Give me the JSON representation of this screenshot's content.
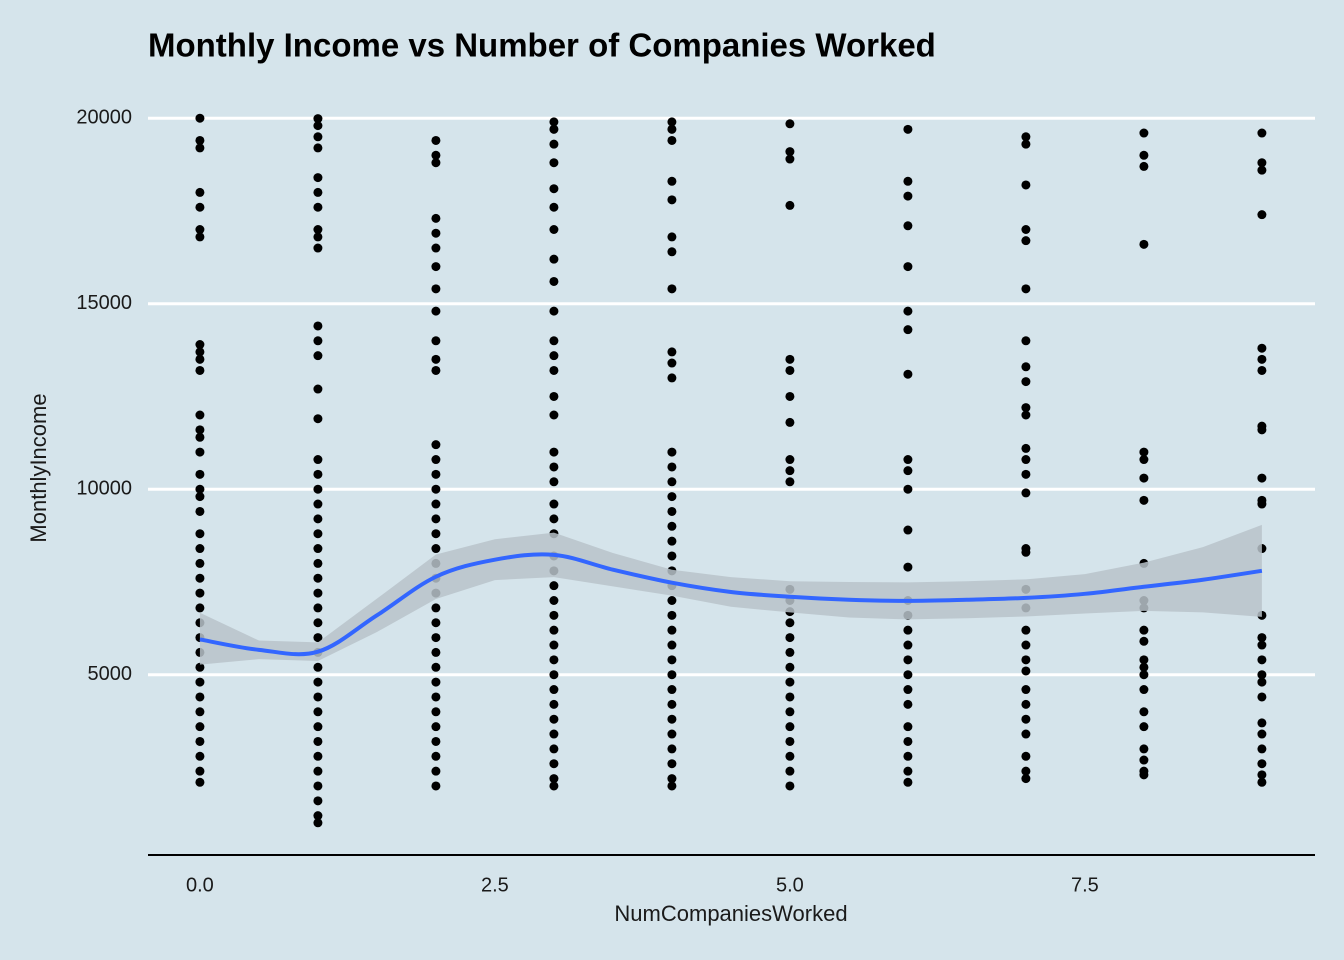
{
  "chart_data": {
    "type": "scatter",
    "title": "Monthly Income vs Number of Companies Worked",
    "x_label": "NumCompaniesWorked",
    "y_label": "MonthlyIncome",
    "xlim": [
      -0.44,
      9.45
    ],
    "ylim": [
      59,
      20949
    ],
    "xticks": [
      {
        "value": 0,
        "label": "0.0"
      },
      2.5,
      {
        "value": 5,
        "label": "5.0"
      },
      7.5
    ],
    "yticks": [
      5000,
      10000,
      15000,
      20000
    ],
    "grid": true,
    "point_color": "#000000",
    "groups": [
      {
        "x": 0,
        "values": [
          20000,
          19400,
          19200,
          18000,
          17600,
          17000,
          16800,
          13900,
          13700,
          13500,
          13200,
          12000,
          11600,
          11400,
          11000,
          10400,
          10000,
          9800,
          9400,
          8800,
          8400,
          8000,
          7600,
          7200,
          6800,
          6400,
          6000,
          5600,
          5200,
          4800,
          4400,
          4000,
          3600,
          3200,
          2800,
          2400,
          2100
        ]
      },
      {
        "x": 1,
        "values": [
          19990,
          19800,
          19500,
          19200,
          18400,
          18000,
          17600,
          17000,
          16800,
          16500,
          14400,
          14000,
          13600,
          12700,
          11900,
          10800,
          10400,
          10000,
          9600,
          9200,
          8800,
          8400,
          8000,
          7600,
          7200,
          6800,
          6400,
          6000,
          5600,
          5200,
          4800,
          4400,
          4000,
          3600,
          3200,
          2800,
          2400,
          2000,
          1600,
          1200,
          1009
        ]
      },
      {
        "x": 2,
        "values": [
          19400,
          19000,
          18800,
          17300,
          16900,
          16500,
          16000,
          15400,
          14800,
          14000,
          13500,
          13200,
          11200,
          10800,
          10400,
          10000,
          9600,
          9200,
          8800,
          8400,
          8000,
          7600,
          7200,
          6800,
          6400,
          6000,
          5600,
          5200,
          4800,
          4400,
          4000,
          3600,
          3200,
          2800,
          2400,
          2000
        ]
      },
      {
        "x": 3,
        "values": [
          19900,
          19700,
          19300,
          18800,
          18100,
          17600,
          17000,
          16200,
          15600,
          14800,
          14000,
          13600,
          13200,
          12500,
          12000,
          11000,
          10600,
          10200,
          9600,
          9200,
          8800,
          8200,
          7800,
          7400,
          7000,
          6600,
          6200,
          5800,
          5400,
          5000,
          4600,
          4200,
          3800,
          3400,
          3000,
          2600,
          2200,
          2000
        ]
      },
      {
        "x": 4,
        "values": [
          19900,
          19700,
          19400,
          18300,
          17800,
          16800,
          16400,
          15400,
          13700,
          13400,
          13000,
          11000,
          10600,
          10200,
          9800,
          9400,
          9000,
          8600,
          8200,
          7800,
          7400,
          7000,
          6600,
          6200,
          5800,
          5400,
          5000,
          4600,
          4200,
          3800,
          3400,
          3000,
          2600,
          2200,
          2000
        ]
      },
      {
        "x": 5,
        "values": [
          19850,
          19100,
          18900,
          17650,
          13500,
          13200,
          12500,
          11800,
          10800,
          10500,
          10200,
          7300,
          7000,
          6700,
          6400,
          6000,
          5600,
          5200,
          4800,
          4400,
          4000,
          3600,
          3200,
          2800,
          2400,
          2000
        ]
      },
      {
        "x": 6,
        "values": [
          19700,
          18300,
          17900,
          17100,
          16000,
          14800,
          14300,
          13100,
          10800,
          10500,
          10000,
          8900,
          7900,
          7000,
          6600,
          6200,
          5800,
          5400,
          5000,
          4600,
          4200,
          3600,
          3200,
          2800,
          2400,
          2100
        ]
      },
      {
        "x": 7,
        "values": [
          19500,
          19300,
          18200,
          17000,
          16700,
          15400,
          14000,
          13300,
          12900,
          12200,
          12000,
          11100,
          10800,
          10400,
          9900,
          8400,
          8300,
          7300,
          6800,
          6200,
          5800,
          5400,
          5100,
          4600,
          4200,
          3800,
          3400,
          2800,
          2400,
          2200
        ]
      },
      {
        "x": 8,
        "values": [
          19600,
          19000,
          18700,
          16600,
          11000,
          10800,
          10300,
          9700,
          8000,
          7000,
          6800,
          6200,
          5900,
          5400,
          5200,
          5000,
          4600,
          4000,
          3600,
          3000,
          2700,
          2400,
          2300
        ]
      },
      {
        "x": 9,
        "values": [
          19600,
          18800,
          18600,
          17400,
          13800,
          13500,
          13200,
          11700,
          11600,
          10300,
          9700,
          9600,
          8400,
          6600,
          6000,
          5800,
          5400,
          5000,
          4800,
          4400,
          3700,
          3400,
          3000,
          2600,
          2300,
          2100
        ]
      }
    ],
    "smooth": {
      "color": "#3366ff",
      "band_color": "#b8c3ca",
      "x": [
        0,
        0.5,
        1,
        1.5,
        2,
        2.5,
        3,
        3.5,
        4,
        4.5,
        5,
        5.5,
        6,
        6.5,
        7,
        7.5,
        8,
        8.5,
        9
      ],
      "values": [
        5950,
        5670,
        5620,
        6600,
        7640,
        8100,
        8230,
        7830,
        7480,
        7230,
        7100,
        7020,
        6990,
        7020,
        7070,
        7180,
        7370,
        7560,
        7800
      ],
      "lower": [
        5270,
        5420,
        5370,
        6150,
        7040,
        7550,
        7630,
        7380,
        7130,
        6830,
        6680,
        6540,
        6490,
        6520,
        6570,
        6650,
        6720,
        6680,
        6560
      ],
      "upper": [
        6670,
        5920,
        5870,
        7050,
        8240,
        8650,
        8830,
        8280,
        7830,
        7630,
        7520,
        7500,
        7490,
        7520,
        7570,
        7710,
        8020,
        8440,
        9040
      ]
    }
  }
}
